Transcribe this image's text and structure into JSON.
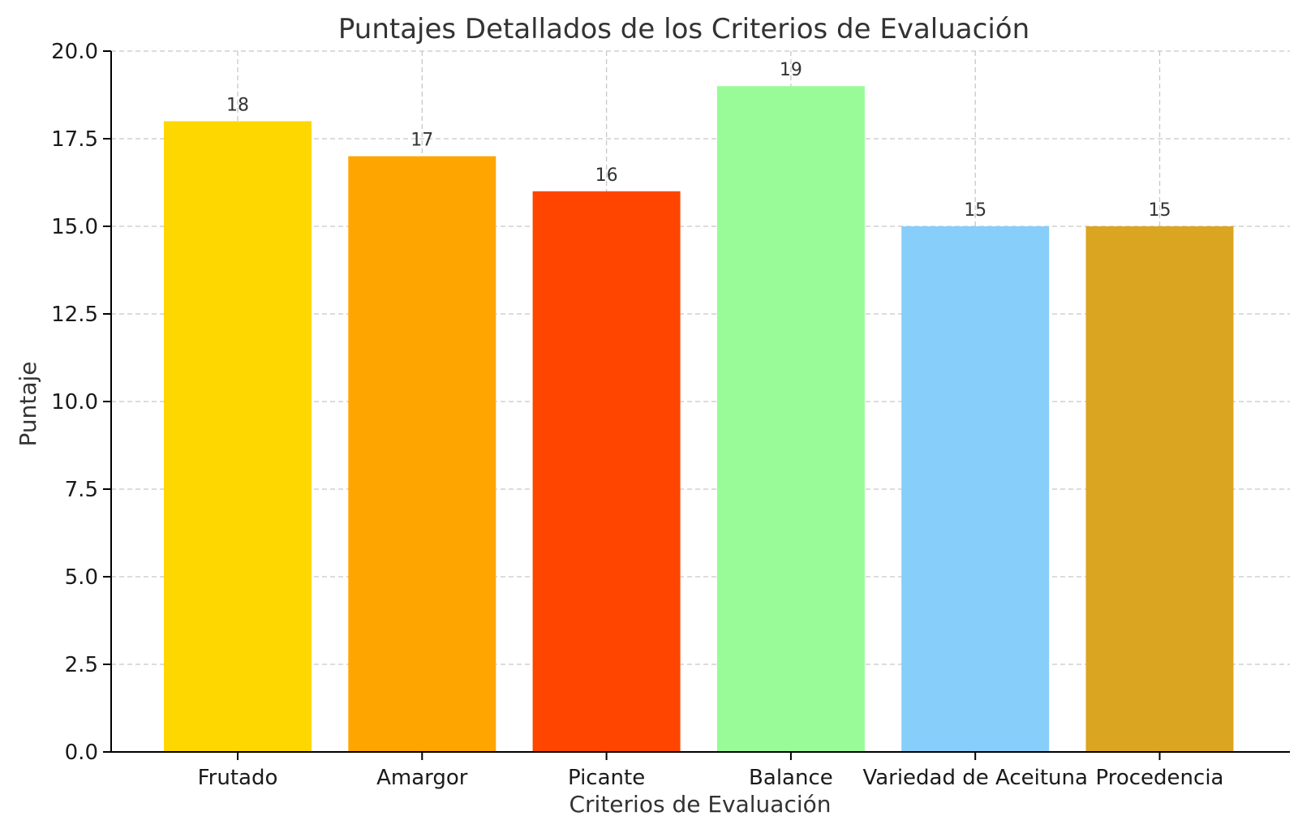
{
  "chart_data": {
    "type": "bar",
    "title": "Puntajes Detallados de los Criterios de Evaluación",
    "xlabel": "Criterios de Evaluación",
    "ylabel": "Puntaje",
    "categories": [
      "Frutado",
      "Amargor",
      "Picante",
      "Balance",
      "Variedad de Aceituna",
      "Procedencia"
    ],
    "values": [
      18,
      17,
      16,
      19,
      15,
      15
    ],
    "data_labels": [
      "18",
      "17",
      "16",
      "19",
      "15",
      "15"
    ],
    "colors": [
      "#FFD700",
      "#FFA500",
      "#FF4500",
      "#98FB98",
      "#87CEFA",
      "#DAA520"
    ],
    "ylim": [
      0,
      20
    ],
    "yticks": [
      0,
      2.5,
      5,
      7.5,
      10,
      12.5,
      15,
      17.5,
      20
    ],
    "ytick_labels": [
      "0.0",
      "2.5",
      "5.0",
      "7.5",
      "10.0",
      "12.5",
      "15.0",
      "17.5",
      "20.0"
    ],
    "grid": true,
    "legend": "none"
  }
}
